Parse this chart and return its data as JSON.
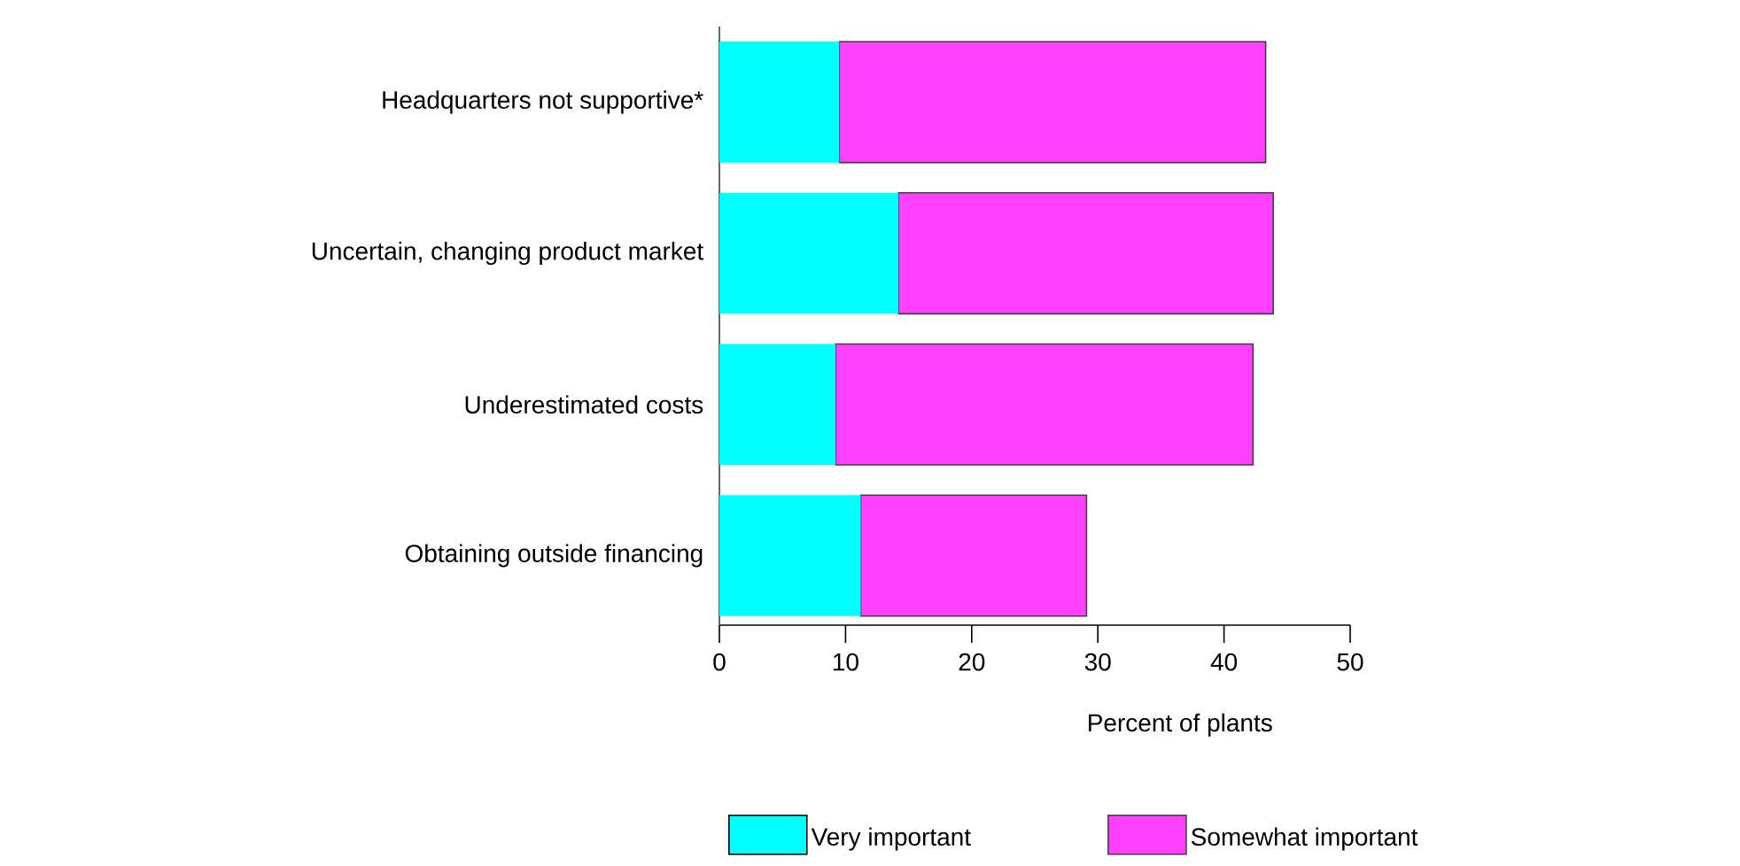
{
  "chart_data": {
    "type": "bar",
    "orientation": "horizontal",
    "stacked": true,
    "xlabel": "Percent of plants",
    "categories": [
      "Headquarters not supportive*",
      "Uncertain, changing product market",
      "Underestimated costs",
      "Obtaining outside financing"
    ],
    "series": [
      {
        "name": "Very important",
        "color": "#00ffff",
        "values": [
          9.5,
          14.2,
          9.2,
          11.2
        ]
      },
      {
        "name": "Somewhat important",
        "color": "#ff40ff",
        "values": [
          33.8,
          29.7,
          33.1,
          17.9
        ]
      }
    ],
    "xlim": [
      0,
      50
    ],
    "xticks": [
      0,
      10,
      20,
      30,
      40,
      50
    ],
    "legend": "bottom"
  }
}
